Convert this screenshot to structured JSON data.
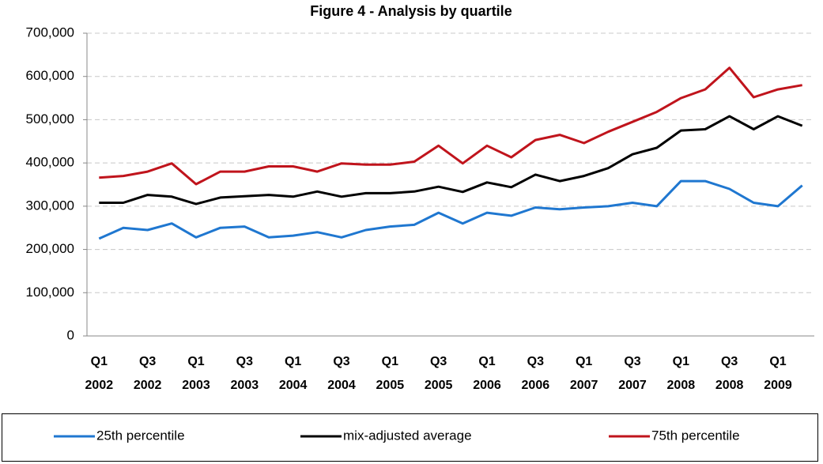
{
  "chart_data": {
    "type": "line",
    "title": "Figure 4 - Analysis by quartile",
    "categories": [
      "Q1 2002",
      null,
      "Q3 2002",
      null,
      "Q1 2003",
      null,
      "Q3 2003",
      null,
      "Q1 2004",
      null,
      "Q3 2004",
      null,
      "Q1 2005",
      null,
      "Q3 2005",
      null,
      "Q1 2006",
      null,
      "Q3 2006",
      null,
      "Q1 2007",
      null,
      "Q3 2007",
      null,
      "Q1 2008",
      null,
      "Q3 2008",
      null,
      "Q1 2009",
      null
    ],
    "series": [
      {
        "name": "25th percentile",
        "color": "#1f77d0",
        "values": [
          225000,
          250000,
          245000,
          260000,
          228000,
          250000,
          253000,
          228000,
          232000,
          240000,
          228000,
          245000,
          253000,
          257000,
          285000,
          260000,
          285000,
          278000,
          297000,
          293000,
          297000,
          300000,
          308000,
          300000,
          358000,
          358000,
          340000,
          308000,
          300000,
          348000
        ]
      },
      {
        "name": "mix-adjusted average",
        "color": "#000000",
        "values": [
          308000,
          308000,
          326000,
          322000,
          305000,
          320000,
          323000,
          326000,
          322000,
          334000,
          322000,
          330000,
          330000,
          334000,
          345000,
          333000,
          355000,
          344000,
          373000,
          358000,
          370000,
          388000,
          420000,
          435000,
          475000,
          478000,
          508000,
          478000,
          508000,
          486000
        ]
      },
      {
        "name": "75th percentile",
        "color": "#c0141c",
        "values": [
          366000,
          370000,
          380000,
          399000,
          351000,
          380000,
          380000,
          392000,
          392000,
          380000,
          399000,
          396000,
          396000,
          403000,
          440000,
          399000,
          440000,
          413000,
          453000,
          465000,
          446000,
          472000,
          495000,
          518000,
          550000,
          570000,
          620000,
          552000,
          570000,
          580000
        ]
      }
    ],
    "ylim": [
      0,
      700000
    ],
    "yticks": [
      0,
      {
        "value": 100000,
        "label": "100,000"
      },
      {
        "value": 200000,
        "label": "200,000"
      },
      {
        "value": 300000,
        "label": "300,000"
      },
      {
        "value": 400000,
        "label": "400,000"
      },
      {
        "value": 500000,
        "label": "500,000"
      },
      {
        "value": 600000,
        "label": "600,000"
      },
      {
        "value": 700000,
        "label": "700,000"
      }
    ],
    "grid": true,
    "legend": "bottom"
  }
}
